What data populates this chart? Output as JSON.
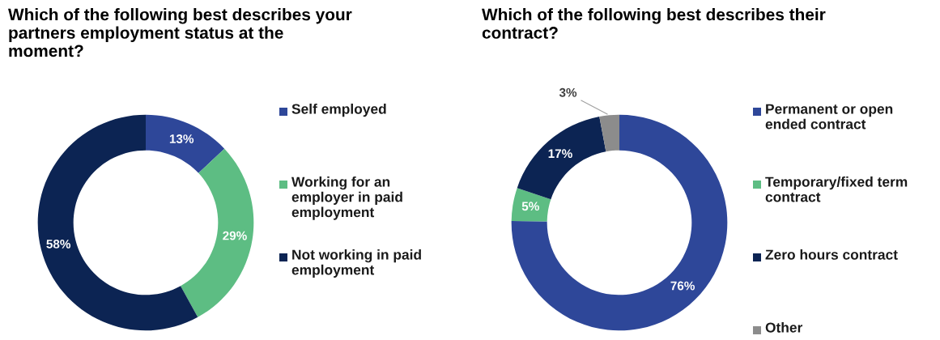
{
  "chart_data": [
    {
      "type": "donut",
      "title": "Which of the following best describes your partners employment status at the moment?",
      "categories": [
        "Self employed",
        "Working for an employer in paid employment",
        "Not working in paid employment"
      ],
      "values": [
        13,
        29,
        58
      ],
      "colors": [
        "#2e4799",
        "#5dbd83",
        "#0c2453"
      ],
      "value_labels": [
        "13%",
        "29%",
        "58%"
      ],
      "legend": "right"
    },
    {
      "type": "donut",
      "title": "Which of the following best describes their contract?",
      "categories": [
        "Permanent or open ended contract",
        "Temporary/fixed term contract",
        "Zero hours contract",
        "Other"
      ],
      "values": [
        76,
        5,
        17,
        3
      ],
      "colors": [
        "#2e4799",
        "#5dbd83",
        "#0c2453",
        "#8c8c8c"
      ],
      "value_labels": [
        "76%",
        "5%",
        "17%",
        "3%"
      ],
      "legend": "right"
    }
  ]
}
